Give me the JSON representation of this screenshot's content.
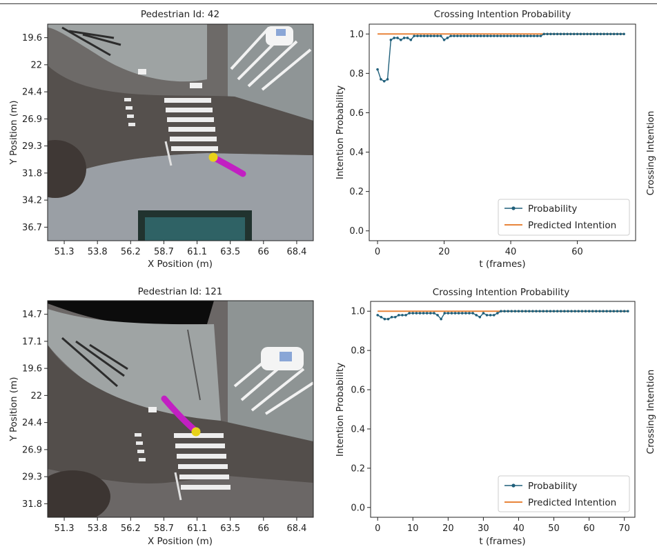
{
  "figure": {
    "right_axis_label": "Crossing Intention"
  },
  "colors": {
    "probability": "#1f5f7a",
    "predicted": "#e8843a",
    "trajectory": "#c21fc2",
    "pedestrian": "#e8d21a"
  },
  "chart_data": [
    {
      "type": "image",
      "title": "Pedestrian Id: 42",
      "xlabel": "X Position (m)",
      "ylabel": "Y Position (m)",
      "xticks": [
        "51.3",
        "53.8",
        "56.2",
        "58.7",
        "61.1",
        "63.5",
        "66",
        "68.4"
      ],
      "yticks": [
        "19.6",
        "22",
        "24.4",
        "26.9",
        "29.3",
        "31.8",
        "34.2",
        "36.7"
      ]
    },
    {
      "type": "line",
      "title": "Crossing Intention Probability",
      "xlabel": "t (frames)",
      "ylabel": "Intention Probability",
      "xticks": [
        "0",
        "20",
        "40",
        "60"
      ],
      "yticks": [
        "0.0",
        "0.2",
        "0.4",
        "0.6",
        "0.8",
        "1.0"
      ],
      "xlim": [
        -2.5,
        77.5
      ],
      "ylim": [
        -0.05,
        1.05
      ],
      "legend": "bottom-right",
      "series": [
        {
          "name": "Probability",
          "x": [
            0,
            1,
            2,
            3,
            4,
            5,
            6,
            7,
            8,
            9,
            10,
            11,
            12,
            13,
            14,
            15,
            16,
            17,
            18,
            19,
            20,
            21,
            22,
            23,
            24,
            25,
            26,
            27,
            28,
            29,
            30,
            31,
            32,
            33,
            34,
            35,
            36,
            37,
            38,
            39,
            40,
            41,
            42,
            43,
            44,
            45,
            46,
            47,
            48,
            49,
            50,
            51,
            52,
            53,
            54,
            55,
            56,
            57,
            58,
            59,
            60,
            61,
            62,
            63,
            64,
            65,
            66,
            67,
            68,
            69,
            70,
            71,
            72,
            73,
            74
          ],
          "y": [
            0.82,
            0.77,
            0.76,
            0.77,
            0.97,
            0.98,
            0.98,
            0.97,
            0.98,
            0.98,
            0.97,
            0.99,
            0.99,
            0.99,
            0.99,
            0.99,
            0.99,
            0.99,
            0.99,
            0.99,
            0.97,
            0.98,
            0.99,
            0.99,
            0.99,
            0.99,
            0.99,
            0.99,
            0.99,
            0.99,
            0.99,
            0.99,
            0.99,
            0.99,
            0.99,
            0.99,
            0.99,
            0.99,
            0.99,
            0.99,
            0.99,
            0.99,
            0.99,
            0.99,
            0.99,
            0.99,
            0.99,
            0.99,
            0.99,
            0.99,
            1.0,
            1.0,
            1.0,
            1.0,
            1.0,
            1.0,
            1.0,
            1.0,
            1.0,
            1.0,
            1.0,
            1.0,
            1.0,
            1.0,
            1.0,
            1.0,
            1.0,
            1.0,
            1.0,
            1.0,
            1.0,
            1.0,
            1.0,
            1.0,
            1.0
          ]
        },
        {
          "name": "Predicted Intention",
          "x": [
            0,
            74
          ],
          "y": [
            1.0,
            1.0
          ]
        }
      ]
    },
    {
      "type": "image",
      "title": "Pedestrian Id: 121",
      "xlabel": "X Position (m)",
      "ylabel": "Y Position (m)",
      "xticks": [
        "51.3",
        "53.8",
        "56.2",
        "58.7",
        "61.1",
        "63.5",
        "66",
        "68.4"
      ],
      "yticks": [
        "14.7",
        "17.1",
        "19.6",
        "22",
        "24.4",
        "26.9",
        "29.3",
        "31.8"
      ]
    },
    {
      "type": "line",
      "title": "Crossing Intention Probability",
      "xlabel": "t (frames)",
      "ylabel": "Intention Probability",
      "xticks": [
        "0",
        "10",
        "20",
        "30",
        "40",
        "50",
        "60",
        "70"
      ],
      "yticks": [
        "0.0",
        "0.2",
        "0.4",
        "0.6",
        "0.8",
        "1.0"
      ],
      "xlim": [
        -2.0,
        73.0
      ],
      "ylim": [
        -0.05,
        1.05
      ],
      "legend": "bottom-right",
      "series": [
        {
          "name": "Probability",
          "x": [
            0,
            1,
            2,
            3,
            4,
            5,
            6,
            7,
            8,
            9,
            10,
            11,
            12,
            13,
            14,
            15,
            16,
            17,
            18,
            19,
            20,
            21,
            22,
            23,
            24,
            25,
            26,
            27,
            28,
            29,
            30,
            31,
            32,
            33,
            34,
            35,
            36,
            37,
            38,
            39,
            40,
            41,
            42,
            43,
            44,
            45,
            46,
            47,
            48,
            49,
            50,
            51,
            52,
            53,
            54,
            55,
            56,
            57,
            58,
            59,
            60,
            61,
            62,
            63,
            64,
            65,
            66,
            67,
            68,
            69,
            70,
            71
          ],
          "y": [
            0.98,
            0.97,
            0.96,
            0.96,
            0.97,
            0.97,
            0.98,
            0.98,
            0.98,
            0.99,
            0.99,
            0.99,
            0.99,
            0.99,
            0.99,
            0.99,
            0.99,
            0.98,
            0.96,
            0.99,
            0.99,
            0.99,
            0.99,
            0.99,
            0.99,
            0.99,
            0.99,
            0.99,
            0.98,
            0.97,
            0.99,
            0.98,
            0.98,
            0.98,
            0.99,
            1.0,
            1.0,
            1.0,
            1.0,
            1.0,
            1.0,
            1.0,
            1.0,
            1.0,
            1.0,
            1.0,
            1.0,
            1.0,
            1.0,
            1.0,
            1.0,
            1.0,
            1.0,
            1.0,
            1.0,
            1.0,
            1.0,
            1.0,
            1.0,
            1.0,
            1.0,
            1.0,
            1.0,
            1.0,
            1.0,
            1.0,
            1.0,
            1.0,
            1.0,
            1.0,
            1.0,
            1.0
          ]
        },
        {
          "name": "Predicted Intention",
          "x": [
            0,
            71
          ],
          "y": [
            1.0,
            1.0
          ]
        }
      ]
    }
  ]
}
